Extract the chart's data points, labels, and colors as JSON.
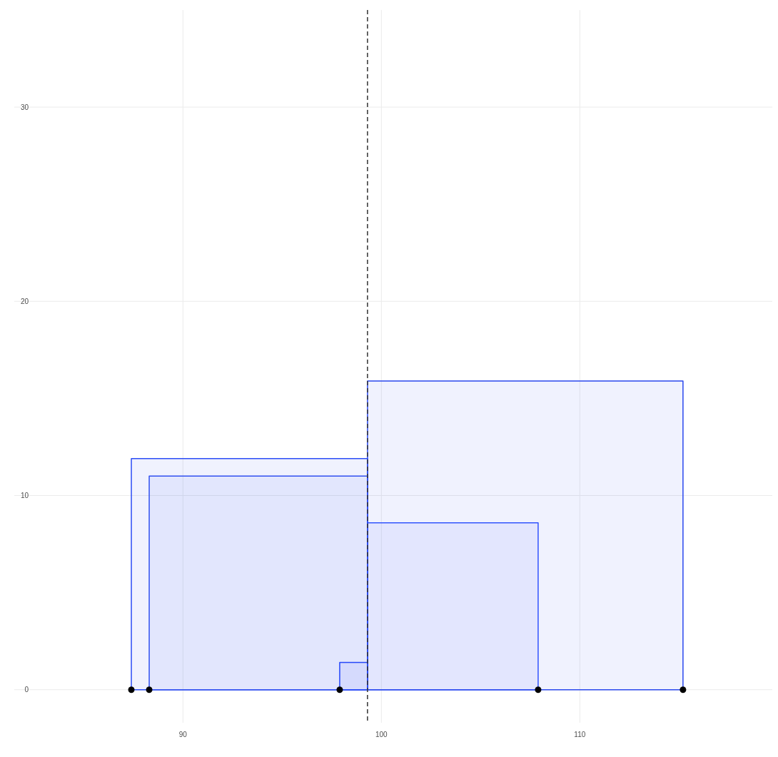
{
  "chart_data": {
    "type": "area",
    "xlim": [
      81.5,
      119.7
    ],
    "ylim": [
      -1.7,
      35
    ],
    "xticks": [
      90,
      100,
      110
    ],
    "yticks": [
      0,
      10,
      20,
      30
    ],
    "grid": true,
    "series": [
      {
        "color": "#2b4cf5",
        "x": [
          87.4,
          99.3
        ],
        "values": [
          11.9,
          11.9
        ]
      },
      {
        "color": "#3050f0",
        "x": [
          88.3,
          99.3
        ],
        "values": [
          11.0,
          11.0
        ]
      },
      {
        "color": "#2446fa",
        "x": [
          97.9,
          99.3
        ],
        "values": [
          1.4,
          1.4
        ]
      },
      {
        "color": "#3355ff",
        "x": [
          99.3,
          107.9
        ],
        "values": [
          8.6,
          8.6
        ]
      },
      {
        "color": "#2a48ee",
        "x": [
          99.3,
          115.2
        ],
        "values": [
          15.9,
          15.9
        ]
      },
      {
        "type": "scatter",
        "color": "#000000",
        "marker": "circle",
        "x": [
          87.4,
          88.3,
          97.9,
          107.9,
          115.2
        ],
        "values": [
          0,
          0,
          0,
          0,
          0
        ]
      }
    ],
    "ref_lines": [
      {
        "axis": "x",
        "value": 99.3,
        "color": "#333333",
        "line_style": "dashed"
      }
    ]
  }
}
